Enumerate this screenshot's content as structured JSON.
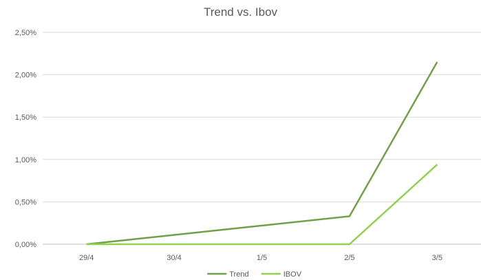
{
  "chart_data": {
    "type": "line",
    "title": "Trend vs. Ibov",
    "categories": [
      "29/4",
      "30/4",
      "1/5",
      "2/5",
      "3/5"
    ],
    "series": [
      {
        "name": "Trend",
        "color": "#70a147",
        "values": [
          0.0,
          0.11,
          0.22,
          0.33,
          2.15
        ]
      },
      {
        "name": "IBOV",
        "color": "#92d050",
        "values": [
          0.0,
          0.0,
          0.0,
          0.0,
          0.94
        ]
      }
    ],
    "ylim": [
      0,
      2.5
    ],
    "yticks": [
      0,
      0.5,
      1.0,
      1.5,
      2.0,
      2.5
    ],
    "ytick_labels": [
      "0,00%",
      "0,50%",
      "1,00%",
      "1,50%",
      "2,00%",
      "2,50%"
    ],
    "grid": true,
    "legend_position": "bottom"
  }
}
